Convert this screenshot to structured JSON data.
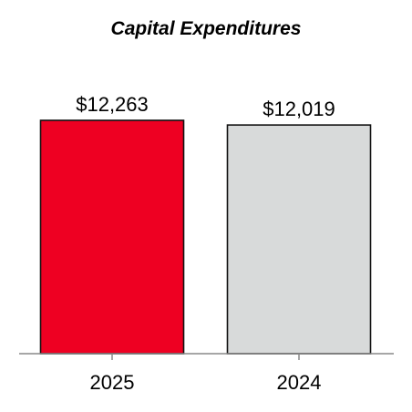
{
  "chart_data": {
    "type": "bar",
    "title": "Capital Expenditures",
    "categories": [
      "2025",
      "2024"
    ],
    "values": [
      12263,
      12019
    ],
    "value_labels": [
      "$12,263",
      "$12,019"
    ],
    "colors": [
      "#EE0022",
      "#D8DADA"
    ],
    "ylim": [
      0,
      12600
    ],
    "grid": false,
    "legend": "none"
  }
}
